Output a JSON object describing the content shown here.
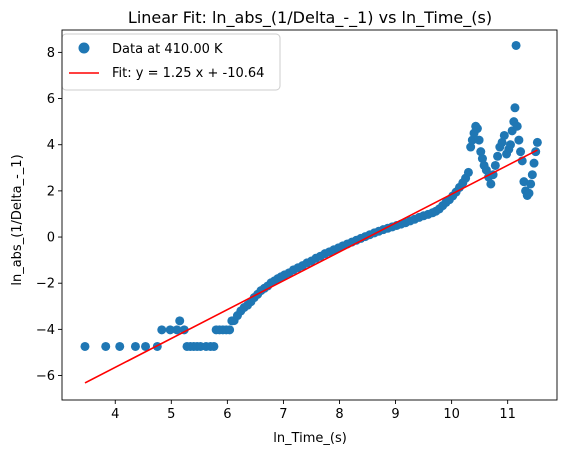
{
  "chart_data": {
    "type": "scatter",
    "title": "Linear Fit: ln_abs_(1/Delta_-_1) vs ln_Time_(s)",
    "xlabel": "ln_Time_(s)",
    "ylabel": "ln_abs_(1/Delta_-_1)",
    "xlim": [
      3.05,
      11.88
    ],
    "ylim": [
      -7.06,
      8.97
    ],
    "xticks": [
      4,
      5,
      6,
      7,
      8,
      9,
      10,
      11
    ],
    "yticks": [
      -6,
      -4,
      -2,
      0,
      2,
      4,
      6,
      8
    ],
    "grid": false,
    "legend_position": "top-left",
    "colors": {
      "scatter": "#1f77b4",
      "fit": "#ff0000"
    },
    "series": [
      {
        "name": "Data at 410.00 K",
        "kind": "scatter",
        "points": [
          [
            3.46,
            -4.74
          ],
          [
            3.83,
            -4.74
          ],
          [
            4.08,
            -4.74
          ],
          [
            4.36,
            -4.74
          ],
          [
            4.54,
            -4.74
          ],
          [
            4.75,
            -4.74
          ],
          [
            4.83,
            -4.02
          ],
          [
            4.98,
            -4.02
          ],
          [
            5.1,
            -4.02
          ],
          [
            5.15,
            -3.63
          ],
          [
            5.23,
            -4.02
          ],
          [
            5.28,
            -4.74
          ],
          [
            5.34,
            -4.74
          ],
          [
            5.4,
            -4.74
          ],
          [
            5.46,
            -4.74
          ],
          [
            5.52,
            -4.74
          ],
          [
            5.62,
            -4.74
          ],
          [
            5.7,
            -4.74
          ],
          [
            5.76,
            -4.74
          ],
          [
            5.8,
            -4.02
          ],
          [
            5.86,
            -4.02
          ],
          [
            5.92,
            -4.02
          ],
          [
            5.98,
            -4.02
          ],
          [
            6.04,
            -4.02
          ],
          [
            6.08,
            -3.63
          ],
          [
            6.12,
            -3.62
          ],
          [
            6.18,
            -3.4
          ],
          [
            6.24,
            -3.2
          ],
          [
            6.3,
            -3.05
          ],
          [
            6.36,
            -2.95
          ],
          [
            6.42,
            -2.8
          ],
          [
            6.48,
            -2.62
          ],
          [
            6.54,
            -2.48
          ],
          [
            6.6,
            -2.32
          ],
          [
            6.66,
            -2.22
          ],
          [
            6.72,
            -2.12
          ],
          [
            6.78,
            -1.98
          ],
          [
            6.84,
            -1.9
          ],
          [
            6.9,
            -1.8
          ],
          [
            6.96,
            -1.72
          ],
          [
            7.02,
            -1.64
          ],
          [
            7.1,
            -1.55
          ],
          [
            7.18,
            -1.42
          ],
          [
            7.26,
            -1.33
          ],
          [
            7.34,
            -1.24
          ],
          [
            7.42,
            -1.12
          ],
          [
            7.5,
            -1.04
          ],
          [
            7.58,
            -0.92
          ],
          [
            7.66,
            -0.83
          ],
          [
            7.74,
            -0.72
          ],
          [
            7.82,
            -0.64
          ],
          [
            7.9,
            -0.55
          ],
          [
            7.98,
            -0.47
          ],
          [
            8.06,
            -0.38
          ],
          [
            8.14,
            -0.3
          ],
          [
            8.22,
            -0.22
          ],
          [
            8.3,
            -0.14
          ],
          [
            8.38,
            -0.06
          ],
          [
            8.46,
            0.02
          ],
          [
            8.54,
            0.1
          ],
          [
            8.62,
            0.18
          ],
          [
            8.7,
            0.25
          ],
          [
            8.78,
            0.32
          ],
          [
            8.86,
            0.38
          ],
          [
            8.94,
            0.44
          ],
          [
            9.02,
            0.5
          ],
          [
            9.1,
            0.56
          ],
          [
            9.18,
            0.62
          ],
          [
            9.26,
            0.7
          ],
          [
            9.34,
            0.77
          ],
          [
            9.42,
            0.85
          ],
          [
            9.5,
            0.92
          ],
          [
            9.58,
            0.98
          ],
          [
            9.66,
            1.05
          ],
          [
            9.72,
            1.12
          ],
          [
            9.78,
            1.22
          ],
          [
            9.84,
            1.36
          ],
          [
            9.9,
            1.5
          ],
          [
            9.96,
            1.62
          ],
          [
            10.02,
            1.78
          ],
          [
            10.08,
            1.95
          ],
          [
            10.14,
            2.15
          ],
          [
            10.2,
            2.35
          ],
          [
            10.25,
            2.55
          ],
          [
            10.3,
            2.8
          ],
          [
            10.34,
            3.9
          ],
          [
            10.37,
            4.2
          ],
          [
            10.4,
            4.5
          ],
          [
            10.43,
            4.8
          ],
          [
            10.46,
            4.7
          ],
          [
            10.49,
            4.2
          ],
          [
            10.52,
            3.7
          ],
          [
            10.55,
            3.4
          ],
          [
            10.58,
            3.1
          ],
          [
            10.62,
            2.9
          ],
          [
            10.66,
            2.6
          ],
          [
            10.7,
            2.3
          ],
          [
            10.74,
            2.7
          ],
          [
            10.78,
            3.1
          ],
          [
            10.82,
            3.5
          ],
          [
            10.86,
            3.9
          ],
          [
            10.9,
            4.1
          ],
          [
            10.94,
            4.4
          ],
          [
            10.98,
            3.6
          ],
          [
            11.02,
            3.8
          ],
          [
            11.05,
            4.0
          ],
          [
            11.08,
            4.6
          ],
          [
            11.11,
            5.0
          ],
          [
            11.13,
            5.6
          ],
          [
            11.15,
            8.3
          ],
          [
            11.17,
            4.8
          ],
          [
            11.2,
            4.2
          ],
          [
            11.23,
            3.7
          ],
          [
            11.26,
            3.3
          ],
          [
            11.29,
            2.4
          ],
          [
            11.32,
            2.0
          ],
          [
            11.35,
            1.8
          ],
          [
            11.38,
            1.9
          ],
          [
            11.41,
            2.3
          ],
          [
            11.44,
            2.7
          ],
          [
            11.47,
            3.2
          ],
          [
            11.5,
            3.7
          ],
          [
            11.53,
            4.1
          ]
        ]
      },
      {
        "name": "Fit: y = 1.25 x + -10.64",
        "kind": "line",
        "x": [
          3.46,
          11.53
        ],
        "y": [
          -6.32,
          3.77
        ]
      }
    ]
  }
}
